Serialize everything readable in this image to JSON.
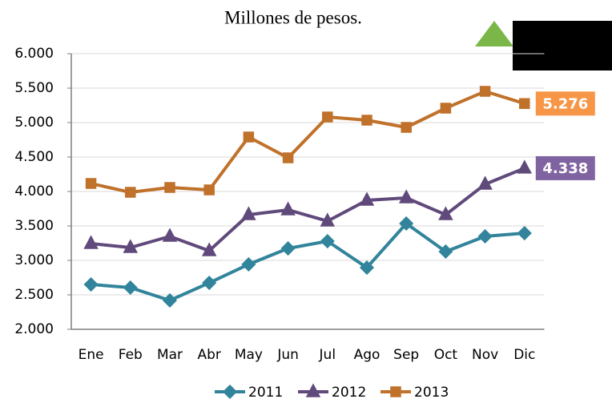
{
  "chart_data": {
    "type": "line",
    "title": "Millones de pesos.",
    "categories": [
      "Ene",
      "Feb",
      "Mar",
      "Abr",
      "May",
      "Jun",
      "Jul",
      "Ago",
      "Sep",
      "Oct",
      "Nov",
      "Dic"
    ],
    "series": [
      {
        "name": "2011",
        "color": "#31849b",
        "marker": "diamond",
        "values": [
          2651,
          2605,
          2419,
          2674,
          2942,
          3174,
          3279,
          2895,
          3535,
          3128,
          3349,
          3395
        ]
      },
      {
        "name": "2012",
        "color": "#604a7b",
        "marker": "triangle",
        "label_color": "#8064a2",
        "values": [
          3244,
          3186,
          3349,
          3140,
          3663,
          3733,
          3570,
          3872,
          3907,
          3663,
          4105,
          4338
        ],
        "value_labels": [
          null,
          null,
          null,
          null,
          null,
          null,
          null,
          null,
          null,
          null,
          null,
          "4.338"
        ]
      },
      {
        "name": "2013",
        "color": "#c0712a",
        "marker": "square",
        "label_color": "#f79646",
        "values": [
          4116,
          3988,
          4058,
          4023,
          4791,
          4488,
          5081,
          5035,
          4930,
          5209,
          5453,
          5276
        ],
        "value_labels": [
          null,
          null,
          null,
          null,
          null,
          null,
          null,
          null,
          null,
          null,
          null,
          "5.276"
        ]
      }
    ],
    "ylim": [
      2000,
      6000
    ],
    "yticks": [
      {
        "value": 2000,
        "label": "2.000"
      },
      {
        "value": 2500,
        "label": "2.500"
      },
      {
        "value": 3000,
        "label": "3.000"
      },
      {
        "value": 3500,
        "label": "3.500"
      },
      {
        "value": 4000,
        "label": "4.000"
      },
      {
        "value": 4500,
        "label": "4.500"
      },
      {
        "value": 5000,
        "label": "5.000"
      },
      {
        "value": 5500,
        "label": "5.500"
      },
      {
        "value": 6000,
        "label": "6.000"
      }
    ],
    "grid": true,
    "legend": "bottom"
  }
}
